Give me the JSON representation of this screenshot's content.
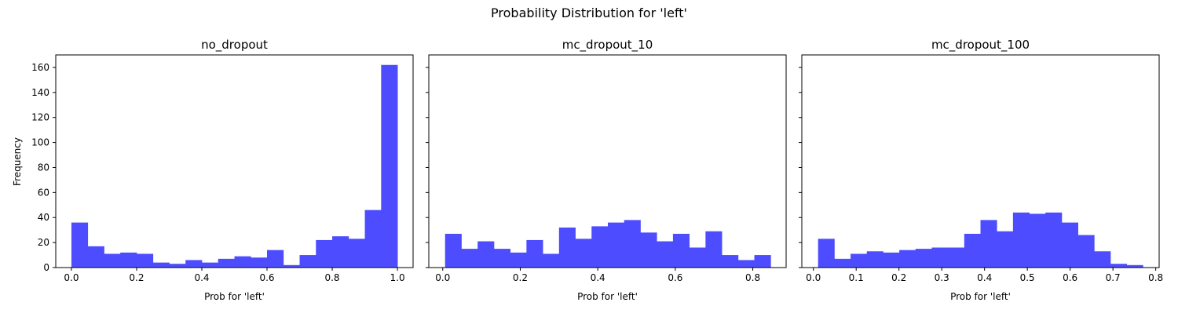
{
  "chart_data": {
    "suptitle": "Probability Distribution for 'left'",
    "ylabel": "Frequency",
    "ylim": [
      0,
      170
    ],
    "yticks": [
      "0",
      "20",
      "40",
      "60",
      "80",
      "100",
      "120",
      "140",
      "160"
    ],
    "bar_color": "#4d4dff",
    "panels": [
      {
        "type": "bar",
        "title": "no_dropout",
        "xlabel": "Prob for 'left'",
        "xlim": [
          -0.048,
          1.048
        ],
        "xticks": [
          "0.0",
          "0.2",
          "0.4",
          "0.6",
          "0.8",
          "1.0"
        ],
        "bin_start": 0.0,
        "bin_end": 1.0,
        "values": [
          36,
          17,
          11,
          12,
          11,
          4,
          3,
          6,
          4,
          7,
          9,
          8,
          14,
          2,
          10,
          22,
          25,
          23,
          46,
          162
        ]
      },
      {
        "type": "bar",
        "title": "mc_dropout_10",
        "xlabel": "Prob for 'left'",
        "xlim": [
          -0.036,
          0.886
        ],
        "xticks": [
          "0.0",
          "0.2",
          "0.4",
          "0.6",
          "0.8"
        ],
        "bin_start": 0.006,
        "bin_end": 0.846,
        "values": [
          27,
          15,
          21,
          15,
          12,
          22,
          11,
          32,
          23,
          33,
          36,
          38,
          28,
          21,
          27,
          16,
          29,
          10,
          6,
          10
        ]
      },
      {
        "type": "bar",
        "title": "mc_dropout_100",
        "xlabel": "Prob for 'left'",
        "xlim": [
          -0.027,
          0.808
        ],
        "xticks": [
          "0.0",
          "0.1",
          "0.2",
          "0.3",
          "0.4",
          "0.5",
          "0.6",
          "0.7",
          "0.8"
        ],
        "bin_start": 0.011,
        "bin_end": 0.77,
        "values": [
          23,
          7,
          11,
          13,
          12,
          14,
          15,
          16,
          16,
          27,
          38,
          29,
          44,
          43,
          44,
          36,
          26,
          13,
          3,
          2
        ]
      }
    ]
  }
}
